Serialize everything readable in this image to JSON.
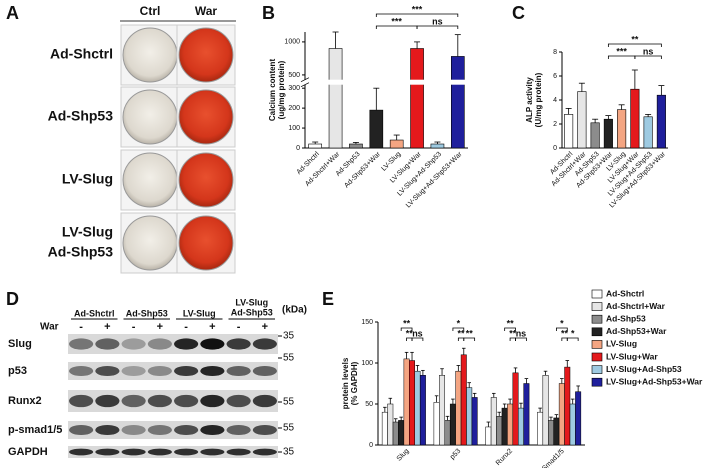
{
  "panel_a": {
    "label": "A",
    "columns": [
      "Ctrl",
      "War"
    ],
    "rows": [
      [
        "Ad-Shctrl"
      ],
      [
        "Ad-Shp53"
      ],
      [
        "LV-Slug"
      ],
      [
        "LV-Slug",
        "Ad-Shp53"
      ]
    ]
  },
  "chart_data": [
    {
      "type": "bar",
      "panel_label": "B",
      "ylabel": [
        "Calcium content",
        "(ug/mg protein)"
      ],
      "categories": [
        "Ad-Shctrl",
        "Ad-Shctrl+War",
        "Ad-Shp53",
        "Ad-Shp53+War",
        "LV-Slug",
        "LV-Slug+War",
        "LV-Slug+Ad-Shp53",
        "LV-Slug+Ad-Shp53+War"
      ],
      "values": [
        20,
        900,
        20,
        190,
        40,
        900,
        20,
        780
      ],
      "errors": [
        10,
        250,
        8,
        110,
        25,
        100,
        10,
        330
      ],
      "colors": [
        "#ffffff",
        "#e6e6e6",
        "#8c8c8c",
        "#222222",
        "#f4a582",
        "#e4191c",
        "#9ecae1",
        "#1f1f9c"
      ],
      "ylim": [
        0,
        1150
      ],
      "ybreak": [
        320,
        420
      ],
      "yticks": [
        0,
        100,
        200,
        300,
        500,
        1000
      ],
      "annotations": [
        "***",
        "***",
        "ns"
      ]
    },
    {
      "type": "bar",
      "panel_label": "C",
      "ylabel": [
        "ALP activity",
        "(U/mg protein)"
      ],
      "categories": [
        "Ad-Shctrl",
        "Ad-Shctrl+War",
        "Ad-Shp53",
        "Ad-Shp53+War",
        "LV-Slug",
        "LV-Slug+War",
        "LV-Slug+Ad-Shp53",
        "LV-Slug+Ad-Shp53+War"
      ],
      "values": [
        2.8,
        4.7,
        2.1,
        2.4,
        3.2,
        4.9,
        2.6,
        4.4
      ],
      "errors": [
        0.5,
        0.7,
        0.3,
        0.3,
        0.4,
        1.6,
        0.2,
        0.8
      ],
      "colors": [
        "#ffffff",
        "#e6e6e6",
        "#8c8c8c",
        "#222222",
        "#f4a582",
        "#e4191c",
        "#9ecae1",
        "#1f1f9c"
      ],
      "ylim": [
        0,
        8
      ],
      "yticks": [
        0,
        2,
        4,
        6,
        8
      ],
      "annotations": [
        "**",
        "***",
        "ns"
      ]
    },
    {
      "type": "grouped_bar",
      "panel_label": "E",
      "ylabel": [
        "protein levels",
        "(% GAPDH)"
      ],
      "categories": [
        "Slug",
        "p53",
        "Runx2",
        "p-Smad1/5"
      ],
      "series": [
        {
          "name": "Ad-Shctrl",
          "color": "#ffffff",
          "values": [
            40,
            52,
            22,
            40
          ],
          "errors": [
            6,
            8,
            6,
            5
          ]
        },
        {
          "name": "Ad-Shctrl+War",
          "color": "#e6e6e6",
          "values": [
            50,
            85,
            58,
            85
          ],
          "errors": [
            7,
            8,
            5,
            5
          ]
        },
        {
          "name": "Ad-Shp53",
          "color": "#8c8c8c",
          "values": [
            28,
            30,
            35,
            30
          ],
          "errors": [
            4,
            5,
            5,
            4
          ]
        },
        {
          "name": "Ad-Shp53+War",
          "color": "#222222",
          "values": [
            30,
            50,
            45,
            33
          ],
          "errors": [
            4,
            6,
            5,
            4
          ]
        },
        {
          "name": "LV-Slug",
          "color": "#f4a582",
          "values": [
            105,
            90,
            50,
            75
          ],
          "errors": [
            8,
            7,
            6,
            6
          ]
        },
        {
          "name": "LV-Slug+War",
          "color": "#e4191c",
          "values": [
            103,
            110,
            88,
            95
          ],
          "errors": [
            10,
            8,
            6,
            8
          ]
        },
        {
          "name": "LV-Slug+Ad-Shp53",
          "color": "#9ecae1",
          "values": [
            90,
            70,
            45,
            50
          ],
          "errors": [
            7,
            6,
            6,
            6
          ]
        },
        {
          "name": "LV-Slug+Ad-Shp53+War",
          "color": "#1f1f9c",
          "values": [
            85,
            58,
            75,
            65
          ],
          "errors": [
            6,
            5,
            6,
            7
          ]
        }
      ],
      "ylim": [
        0,
        150
      ],
      "yticks": [
        0,
        50,
        100,
        150
      ],
      "annotations": [
        [
          "**",
          "**",
          "ns"
        ],
        [
          "*",
          "**",
          "**"
        ],
        [
          "**",
          "**",
          "ns"
        ],
        [
          "*",
          "**",
          "*"
        ]
      ]
    }
  ],
  "panel_d": {
    "label": "D",
    "groups": [
      [
        "Ad-Shctrl"
      ],
      [
        "Ad-Shp53"
      ],
      [
        "LV-Slug"
      ],
      [
        "LV-Slug",
        "Ad-Shp53"
      ]
    ],
    "treatment": "War",
    "signs": [
      "-",
      "+"
    ],
    "unit": "(kDa)",
    "rows": [
      "Slug",
      "p53",
      "Runx2",
      "p-smad1/5",
      "GAPDH"
    ],
    "markers": [
      35,
      55,
      55,
      55,
      35
    ]
  }
}
